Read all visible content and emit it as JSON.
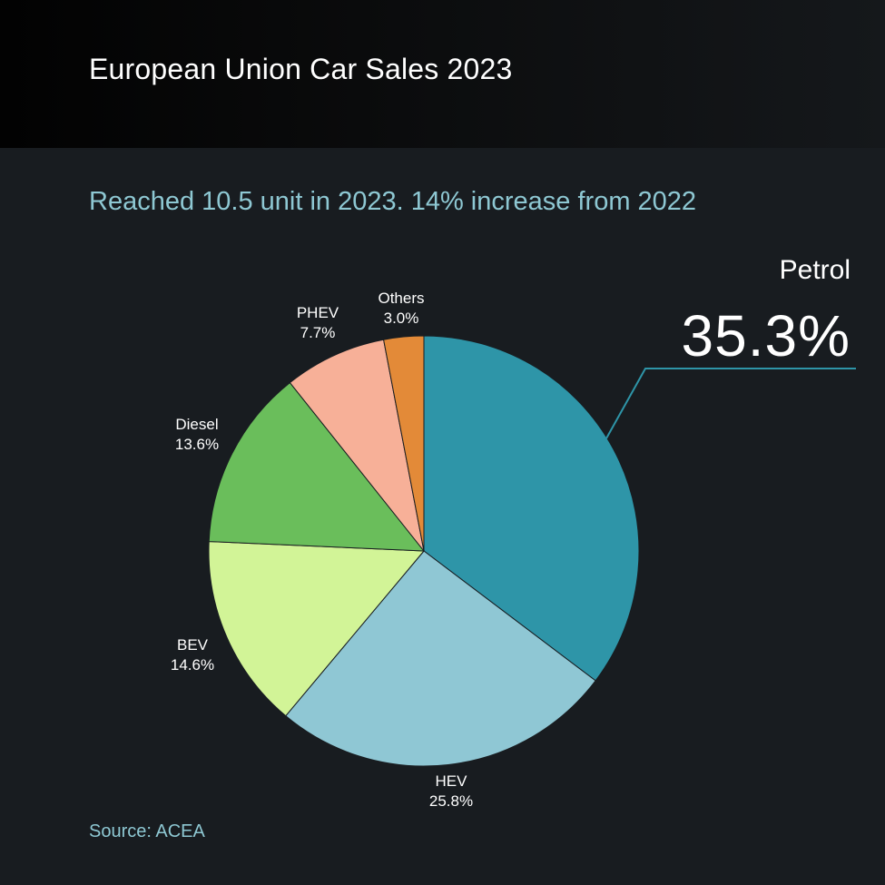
{
  "header": {
    "title": "European Union Car Sales 2023"
  },
  "subtitle": "Reached 10.5 unit in 2023. 14% increase from 2022",
  "source": "Source: ACEA",
  "callout": {
    "name": "Petrol",
    "value": "35.3%"
  },
  "chart_data": {
    "type": "pie",
    "title": "European Union Car Sales 2023",
    "subtitle": "Reached 10.5 unit in 2023. 14% increase from 2022",
    "slices": [
      {
        "label": "Petrol",
        "value": 35.3,
        "display": "35.3%",
        "color": "#2e95a8"
      },
      {
        "label": "HEV",
        "value": 25.8,
        "display": "25.8%",
        "color": "#8fc7d4"
      },
      {
        "label": "BEV",
        "value": 14.6,
        "display": "14.6%",
        "color": "#d2f497"
      },
      {
        "label": "Diesel",
        "value": 13.6,
        "display": "13.6%",
        "color": "#6abe5b"
      },
      {
        "label": "PHEV",
        "value": 7.7,
        "display": "7.7%",
        "color": "#f7b098"
      },
      {
        "label": "Others",
        "value": 3.0,
        "display": "3.0%",
        "color": "#e38a38"
      }
    ]
  }
}
